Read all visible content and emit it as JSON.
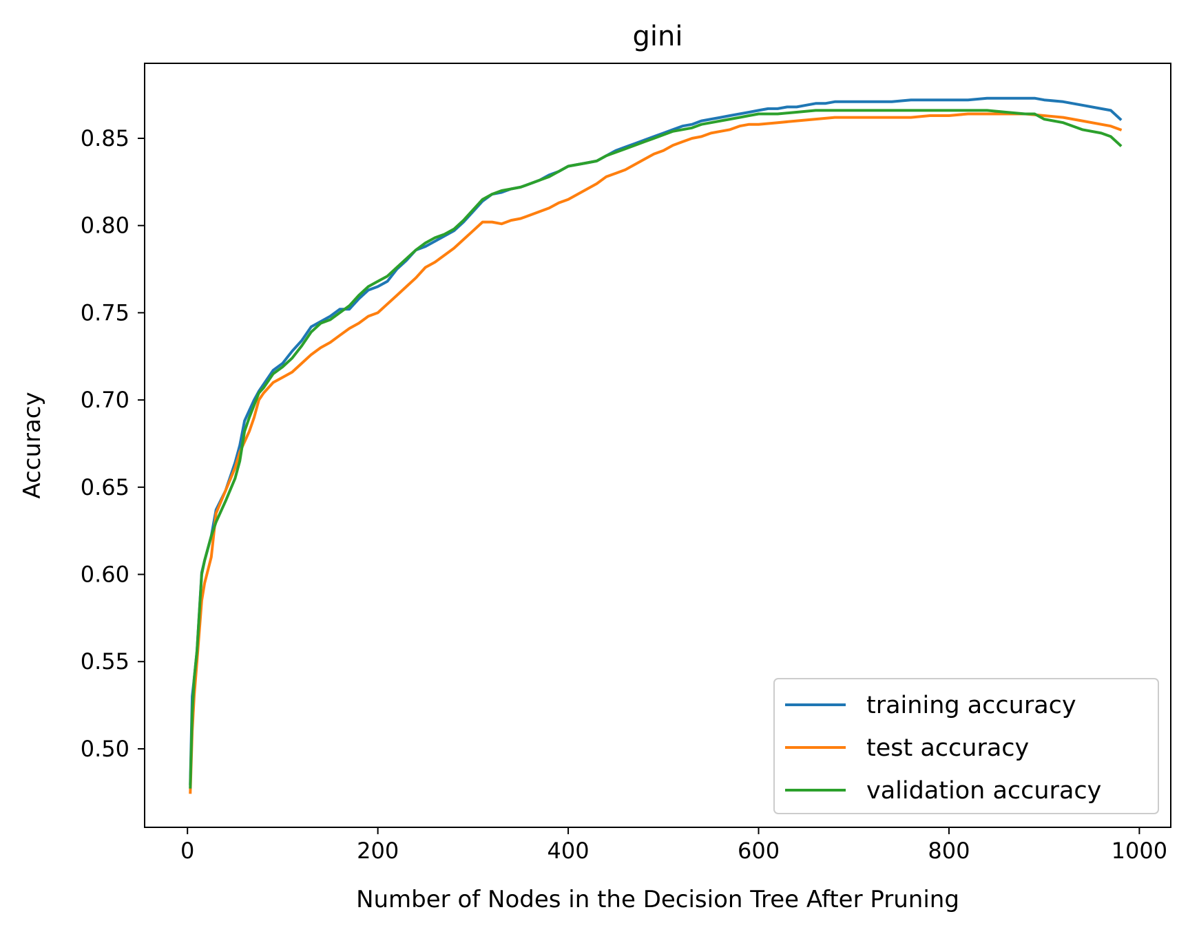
{
  "chart_data": {
    "type": "line",
    "title": "gini",
    "xlabel": "Number of Nodes in the Decision Tree After Pruning",
    "ylabel": "Accuracy",
    "xlim": [
      -45,
      1033
    ],
    "ylim": [
      0.455,
      0.893
    ],
    "xticks": [
      0,
      200,
      400,
      600,
      800,
      1000
    ],
    "xtick_labels": [
      "0",
      "200",
      "400",
      "600",
      "800",
      "1000"
    ],
    "yticks": [
      0.5,
      0.55,
      0.6,
      0.65,
      0.7,
      0.75,
      0.8,
      0.85
    ],
    "ytick_labels": [
      "0.50",
      "0.55",
      "0.60",
      "0.65",
      "0.70",
      "0.75",
      "0.80",
      "0.85"
    ],
    "grid": false,
    "legend_position": "lower-right",
    "series": [
      {
        "name": "training accuracy",
        "color": "#1f77b4",
        "x": [
          3,
          5,
          7,
          10,
          15,
          18,
          25,
          30,
          40,
          50,
          55,
          60,
          65,
          70,
          75,
          80,
          90,
          100,
          110,
          120,
          130,
          140,
          150,
          160,
          170,
          180,
          190,
          200,
          210,
          220,
          230,
          240,
          250,
          260,
          270,
          280,
          290,
          300,
          310,
          320,
          330,
          340,
          350,
          360,
          370,
          380,
          390,
          400,
          410,
          420,
          430,
          440,
          450,
          460,
          470,
          480,
          490,
          500,
          510,
          520,
          530,
          540,
          550,
          560,
          570,
          580,
          590,
          600,
          610,
          620,
          630,
          640,
          650,
          660,
          670,
          680,
          700,
          720,
          740,
          760,
          780,
          800,
          820,
          840,
          860,
          880,
          890,
          900,
          920,
          940,
          960,
          970,
          980
        ],
        "y": [
          0.48,
          0.53,
          0.54,
          0.556,
          0.601,
          0.608,
          0.622,
          0.637,
          0.648,
          0.664,
          0.674,
          0.688,
          0.694,
          0.7,
          0.705,
          0.709,
          0.717,
          0.721,
          0.728,
          0.734,
          0.742,
          0.745,
          0.748,
          0.752,
          0.752,
          0.758,
          0.763,
          0.765,
          0.768,
          0.775,
          0.78,
          0.786,
          0.788,
          0.791,
          0.794,
          0.797,
          0.802,
          0.808,
          0.814,
          0.818,
          0.819,
          0.821,
          0.822,
          0.824,
          0.826,
          0.829,
          0.831,
          0.834,
          0.835,
          0.836,
          0.837,
          0.84,
          0.843,
          0.845,
          0.847,
          0.849,
          0.851,
          0.853,
          0.855,
          0.857,
          0.858,
          0.86,
          0.861,
          0.862,
          0.863,
          0.864,
          0.865,
          0.866,
          0.867,
          0.867,
          0.868,
          0.868,
          0.869,
          0.87,
          0.87,
          0.871,
          0.871,
          0.871,
          0.871,
          0.872,
          0.872,
          0.872,
          0.872,
          0.873,
          0.873,
          0.873,
          0.873,
          0.872,
          0.871,
          0.869,
          0.867,
          0.866,
          0.861
        ]
      },
      {
        "name": "test accuracy",
        "color": "#ff7f0e",
        "x": [
          3,
          5,
          7,
          10,
          15,
          18,
          25,
          30,
          40,
          50,
          55,
          60,
          65,
          70,
          75,
          80,
          90,
          100,
          110,
          120,
          130,
          140,
          150,
          160,
          170,
          180,
          190,
          200,
          210,
          220,
          230,
          240,
          250,
          260,
          270,
          280,
          290,
          300,
          310,
          320,
          330,
          340,
          350,
          360,
          370,
          380,
          390,
          400,
          410,
          420,
          430,
          440,
          450,
          460,
          470,
          480,
          490,
          500,
          510,
          520,
          530,
          540,
          550,
          560,
          570,
          580,
          590,
          600,
          620,
          640,
          660,
          680,
          700,
          720,
          740,
          760,
          780,
          800,
          820,
          840,
          860,
          880,
          900,
          920,
          940,
          960,
          970,
          980
        ],
        "y": [
          0.475,
          0.51,
          0.53,
          0.55,
          0.585,
          0.595,
          0.61,
          0.635,
          0.648,
          0.661,
          0.67,
          0.676,
          0.682,
          0.69,
          0.7,
          0.704,
          0.71,
          0.713,
          0.716,
          0.721,
          0.726,
          0.73,
          0.733,
          0.737,
          0.741,
          0.744,
          0.748,
          0.75,
          0.755,
          0.76,
          0.765,
          0.77,
          0.776,
          0.779,
          0.783,
          0.787,
          0.792,
          0.797,
          0.802,
          0.802,
          0.801,
          0.803,
          0.804,
          0.806,
          0.808,
          0.81,
          0.813,
          0.815,
          0.818,
          0.821,
          0.824,
          0.828,
          0.83,
          0.832,
          0.835,
          0.838,
          0.841,
          0.843,
          0.846,
          0.848,
          0.85,
          0.851,
          0.853,
          0.854,
          0.855,
          0.857,
          0.858,
          0.858,
          0.859,
          0.86,
          0.861,
          0.862,
          0.862,
          0.862,
          0.862,
          0.862,
          0.863,
          0.863,
          0.864,
          0.864,
          0.864,
          0.864,
          0.863,
          0.862,
          0.86,
          0.858,
          0.857,
          0.855
        ]
      },
      {
        "name": "validation accuracy",
        "color": "#2ca02c",
        "x": [
          3,
          5,
          7,
          10,
          15,
          18,
          25,
          30,
          40,
          50,
          55,
          60,
          65,
          70,
          75,
          80,
          90,
          100,
          110,
          120,
          130,
          140,
          150,
          160,
          170,
          180,
          190,
          200,
          210,
          220,
          230,
          240,
          250,
          260,
          270,
          280,
          290,
          300,
          310,
          320,
          330,
          340,
          350,
          360,
          370,
          380,
          390,
          400,
          410,
          420,
          430,
          440,
          450,
          460,
          470,
          480,
          490,
          500,
          510,
          520,
          530,
          540,
          550,
          560,
          570,
          580,
          590,
          600,
          620,
          640,
          660,
          680,
          700,
          720,
          740,
          760,
          780,
          800,
          820,
          840,
          860,
          880,
          890,
          900,
          920,
          940,
          960,
          970,
          980
        ],
        "y": [
          0.478,
          0.52,
          0.54,
          0.556,
          0.6,
          0.608,
          0.622,
          0.63,
          0.642,
          0.655,
          0.665,
          0.682,
          0.69,
          0.697,
          0.704,
          0.707,
          0.715,
          0.719,
          0.724,
          0.731,
          0.739,
          0.744,
          0.746,
          0.75,
          0.754,
          0.76,
          0.765,
          0.768,
          0.771,
          0.776,
          0.781,
          0.786,
          0.79,
          0.793,
          0.795,
          0.798,
          0.803,
          0.809,
          0.815,
          0.818,
          0.82,
          0.821,
          0.822,
          0.824,
          0.826,
          0.828,
          0.831,
          0.834,
          0.835,
          0.836,
          0.837,
          0.84,
          0.842,
          0.844,
          0.846,
          0.848,
          0.85,
          0.852,
          0.854,
          0.855,
          0.856,
          0.858,
          0.859,
          0.86,
          0.861,
          0.862,
          0.863,
          0.864,
          0.864,
          0.865,
          0.866,
          0.866,
          0.866,
          0.866,
          0.866,
          0.866,
          0.866,
          0.866,
          0.866,
          0.866,
          0.865,
          0.864,
          0.864,
          0.861,
          0.859,
          0.855,
          0.853,
          0.851,
          0.846
        ]
      }
    ]
  }
}
